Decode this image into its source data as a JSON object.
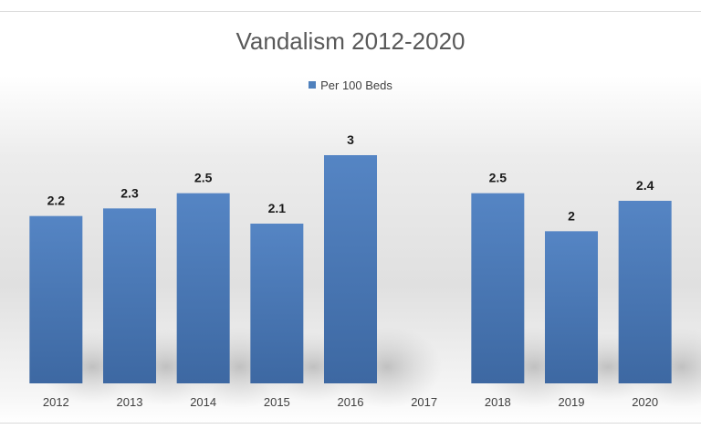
{
  "chart_data": {
    "type": "bar",
    "title": "Vandalism 2012-2020",
    "xlabel": "",
    "ylabel": "",
    "categories": [
      "2012",
      "2013",
      "2014",
      "2015",
      "2016",
      "2017",
      "2018",
      "2019",
      "2020"
    ],
    "series": [
      {
        "name": "Per 100 Beds",
        "values": [
          2.2,
          2.3,
          2.5,
          2.1,
          3,
          null,
          2.5,
          2,
          2.4
        ]
      }
    ],
    "data_labels": [
      "2.2",
      "2.3",
      "2.5",
      "2.1",
      "3",
      "",
      "2.5",
      "2",
      "2.4"
    ],
    "ylim": [
      0,
      3
    ],
    "grid": false,
    "legend_position": "top",
    "colors": {
      "bar": "#4f81bd",
      "bar_dark": "#3a67a0"
    }
  }
}
